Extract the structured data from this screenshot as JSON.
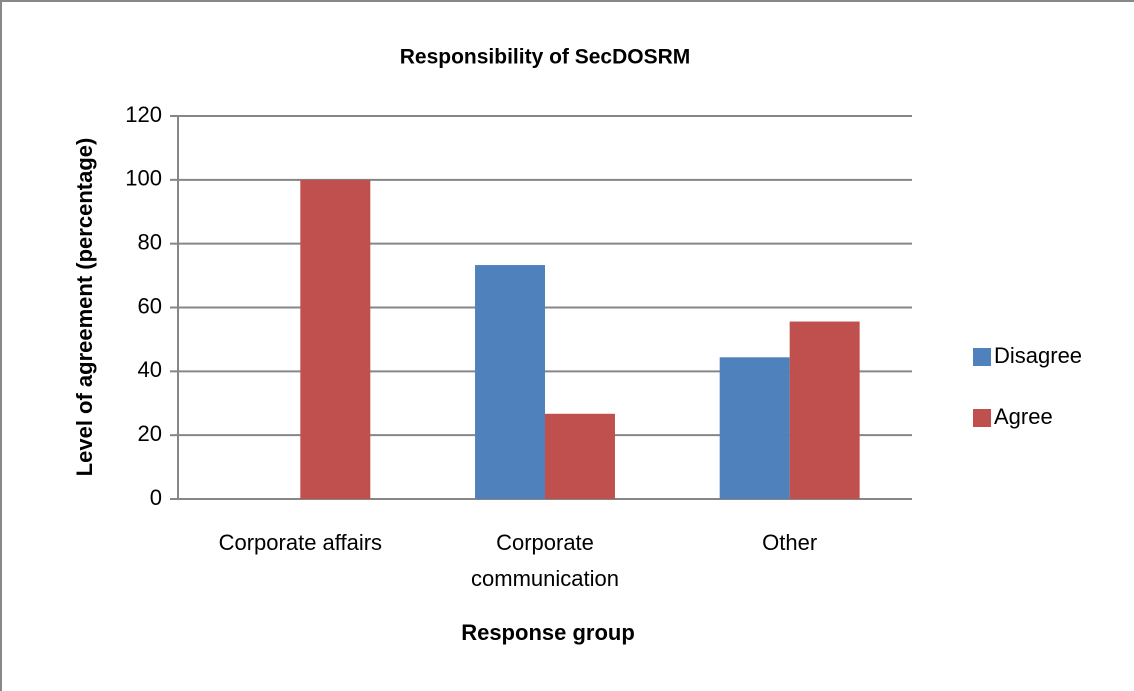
{
  "chart_data": {
    "type": "bar",
    "title": "Responsibility of SecDOSRM",
    "x_label": "Response group",
    "y_label": "Level of agreement (percentage)",
    "categories": [
      "Corporate affairs",
      "Corporate communication",
      "Other"
    ],
    "series": [
      {
        "name": "Disagree",
        "color": "#4f81bd",
        "values": [
          0,
          73.3,
          44.4
        ]
      },
      {
        "name": "Agree",
        "color": "#c0504d",
        "values": [
          100,
          26.7,
          55.6
        ]
      }
    ],
    "ylim": [
      0,
      120
    ],
    "yticks": [
      0,
      20,
      40,
      60,
      80,
      100,
      120
    ],
    "grid": true,
    "legend": "right"
  }
}
